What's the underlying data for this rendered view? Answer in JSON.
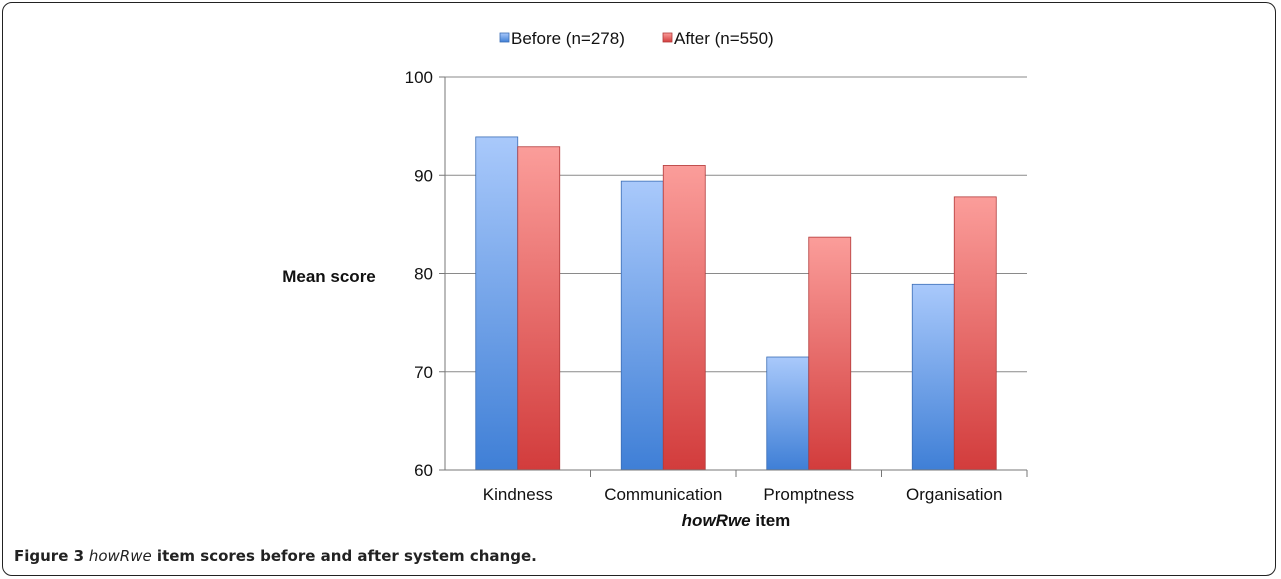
{
  "chart_data": {
    "type": "bar",
    "categories": [
      "Kindness",
      "Communication",
      "Promptness",
      "Organisation"
    ],
    "series": [
      {
        "name": "Before (n=278)",
        "values": [
          93.9,
          89.4,
          71.5,
          78.9
        ],
        "color": "#5a91e0"
      },
      {
        "name": "After (n=550)",
        "values": [
          92.9,
          91.0,
          83.7,
          87.8
        ],
        "color": "#e06565"
      }
    ],
    "ylabel": "Mean score",
    "xlabel_italic": "howRwe",
    "xlabel_rest": " item",
    "ylim": [
      60,
      100
    ],
    "yticks": [
      "60",
      "70",
      "80",
      "90",
      "100"
    ],
    "grid": true,
    "legend": "top-center"
  },
  "caption": {
    "figure_label": "Figure 3",
    "italic_term": "howRwe",
    "text": " item scores before and after system change."
  }
}
